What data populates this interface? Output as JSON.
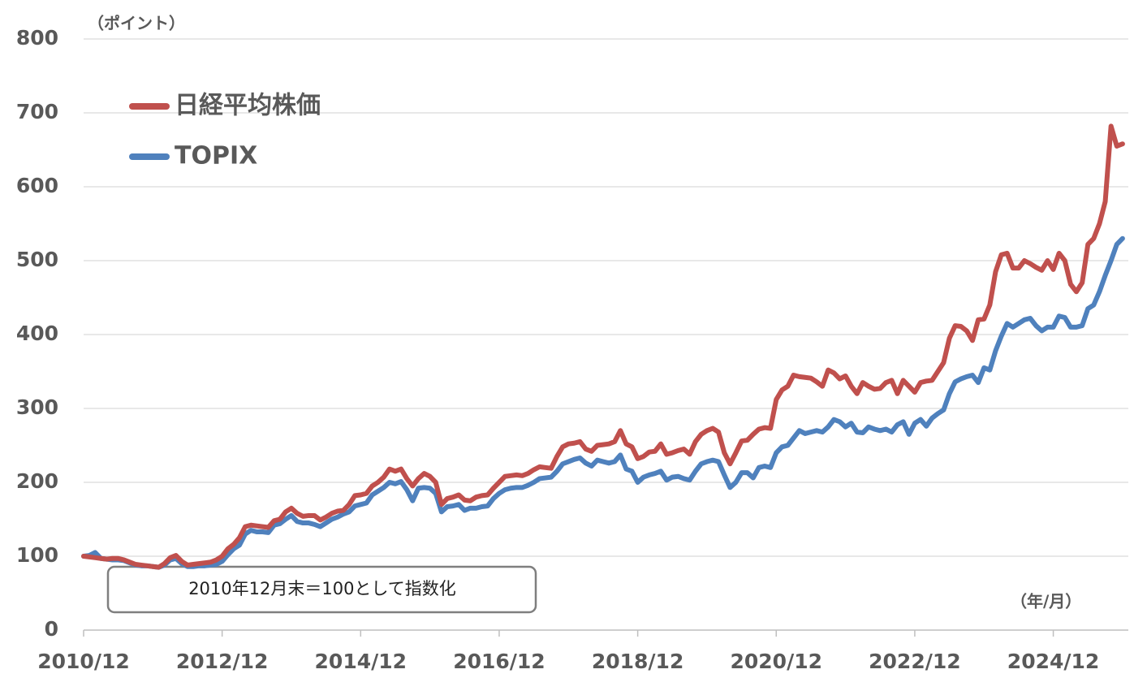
{
  "chart_data": {
    "type": "line",
    "y_unit_label": "（ポイント）",
    "x_unit_label": "（年/月）",
    "annotation": "2010年12月末＝100として指数化",
    "categories": [
      "2010/12",
      null,
      null,
      null,
      null,
      null,
      null,
      null,
      null,
      null,
      null,
      null,
      null,
      null,
      null,
      null,
      null,
      null,
      null,
      null,
      null,
      null,
      null,
      null,
      "2012/12",
      null,
      null,
      null,
      null,
      null,
      null,
      null,
      null,
      null,
      null,
      null,
      null,
      null,
      null,
      null,
      null,
      null,
      null,
      null,
      null,
      null,
      null,
      null,
      "2014/12",
      null,
      null,
      null,
      null,
      null,
      null,
      null,
      null,
      null,
      null,
      null,
      null,
      null,
      null,
      null,
      null,
      null,
      null,
      null,
      null,
      null,
      null,
      null,
      "2016/12",
      null,
      null,
      null,
      null,
      null,
      null,
      null,
      null,
      null,
      null,
      null,
      null,
      null,
      null,
      null,
      null,
      null,
      null,
      null,
      null,
      null,
      null,
      null,
      "2018/12",
      null,
      null,
      null,
      null,
      null,
      null,
      null,
      null,
      null,
      null,
      null,
      null,
      null,
      null,
      null,
      null,
      null,
      null,
      null,
      null,
      null,
      null,
      null,
      "2020/12",
      null,
      null,
      null,
      null,
      null,
      null,
      null,
      null,
      null,
      null,
      null,
      null,
      null,
      null,
      null,
      null,
      null,
      null,
      null,
      null,
      null,
      null,
      null,
      "2022/12",
      null,
      null,
      null,
      null,
      null,
      null,
      null,
      null,
      null,
      null,
      null,
      null,
      null,
      null,
      null,
      null,
      null,
      null,
      null,
      null,
      null,
      null,
      null,
      "2024/12",
      null,
      null,
      null,
      null,
      null,
      null,
      null,
      null,
      null,
      null,
      null,
      null
    ],
    "series": [
      {
        "name": "日経平均株価",
        "color": "#c0504d",
        "values": [
          100,
          99,
          98,
          97,
          96,
          97,
          97,
          95,
          92,
          89,
          88,
          87,
          86,
          85,
          90,
          98,
          101,
          93,
          88,
          89,
          90,
          91,
          92,
          95,
          100,
          110,
          116,
          125,
          140,
          142,
          141,
          140,
          139,
          148,
          150,
          160,
          165,
          158,
          154,
          155,
          155,
          149,
          153,
          158,
          161,
          162,
          170,
          182,
          183,
          185,
          195,
          200,
          207,
          218,
          215,
          218,
          205,
          195,
          205,
          212,
          208,
          200,
          170,
          178,
          180,
          183,
          176,
          175,
          180,
          182,
          183,
          192,
          200,
          208,
          209,
          210,
          209,
          212,
          217,
          221,
          220,
          219,
          235,
          248,
          252,
          253,
          255,
          245,
          242,
          250,
          251,
          252,
          255,
          270,
          252,
          248,
          232,
          235,
          241,
          242,
          252,
          238,
          240,
          243,
          245,
          238,
          255,
          265,
          270,
          273,
          268,
          240,
          225,
          240,
          256,
          257,
          265,
          272,
          274,
          273,
          312,
          325,
          330,
          345,
          343,
          342,
          341,
          336,
          330,
          352,
          348,
          340,
          344,
          330,
          320,
          335,
          330,
          326,
          327,
          335,
          338,
          320,
          338,
          330,
          322,
          335,
          337,
          338,
          350,
          362,
          395,
          412,
          411,
          405,
          392,
          420,
          421,
          440,
          485,
          508,
          510,
          490,
          490,
          500,
          496,
          491,
          487,
          500,
          488,
          510,
          500,
          468,
          458,
          470,
          522,
          530,
          550,
          580,
          682,
          655,
          658
        ]
      },
      {
        "name": "TOPIX",
        "color": "#4f81bd",
        "values": [
          100,
          101,
          105,
          97,
          96,
          95,
          95,
          94,
          91,
          88,
          87,
          87,
          86,
          85,
          88,
          95,
          97,
          90,
          86,
          86,
          87,
          87,
          88,
          89,
          93,
          102,
          110,
          115,
          130,
          135,
          133,
          133,
          132,
          142,
          144,
          150,
          155,
          147,
          145,
          145,
          143,
          140,
          145,
          150,
          153,
          157,
          160,
          168,
          170,
          172,
          183,
          188,
          193,
          200,
          198,
          201,
          190,
          175,
          192,
          193,
          192,
          185,
          160,
          167,
          168,
          170,
          162,
          165,
          165,
          167,
          168,
          178,
          185,
          190,
          192,
          193,
          193,
          196,
          200,
          205,
          206,
          207,
          215,
          225,
          228,
          231,
          233,
          226,
          222,
          230,
          228,
          226,
          228,
          237,
          218,
          215,
          200,
          207,
          210,
          212,
          215,
          203,
          207,
          208,
          205,
          203,
          215,
          225,
          228,
          230,
          228,
          210,
          193,
          200,
          213,
          213,
          206,
          220,
          222,
          220,
          240,
          248,
          250,
          260,
          270,
          266,
          268,
          270,
          268,
          275,
          285,
          282,
          275,
          280,
          268,
          267,
          275,
          272,
          270,
          272,
          268,
          278,
          282,
          265,
          280,
          285,
          276,
          287,
          293,
          298,
          320,
          336,
          340,
          343,
          345,
          335,
          355,
          352,
          378,
          398,
          415,
          410,
          415,
          420,
          422,
          412,
          405,
          410,
          410,
          425,
          423,
          410,
          410,
          412,
          435,
          440,
          458,
          480,
          500,
          522,
          530
        ]
      }
    ],
    "ylim": [
      0,
      800
    ],
    "yticks": [
      0,
      100,
      200,
      300,
      400,
      500,
      600,
      700,
      800
    ],
    "grid": true,
    "legend": "upper left"
  }
}
